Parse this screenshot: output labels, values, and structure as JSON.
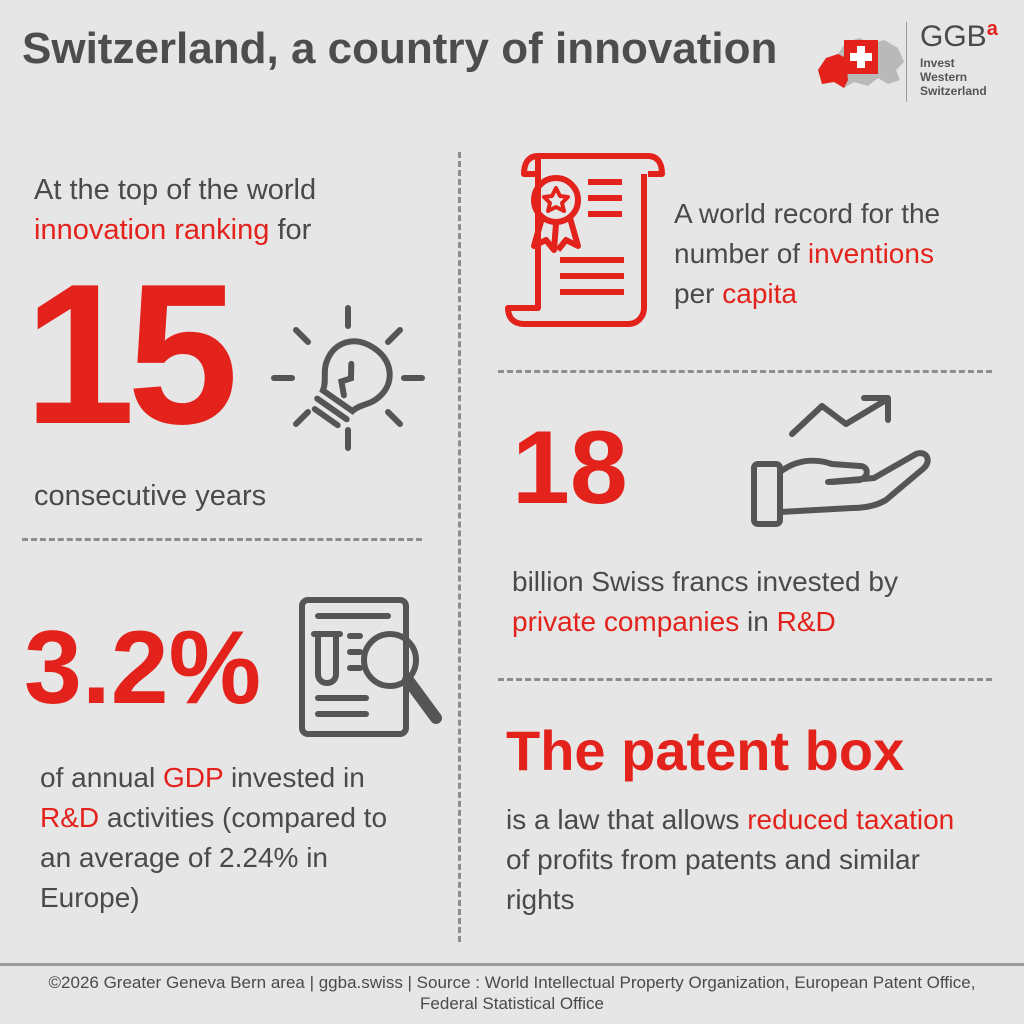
{
  "title": "Switzerland, a country of innovation",
  "logo": {
    "brand": "GGB",
    "brand_sup": "a",
    "lines": [
      "Invest",
      "Western",
      "Switzerland"
    ]
  },
  "block1": {
    "pre": "At the top of the world",
    "highlight": "innovation ranking",
    "post": "for",
    "number": "15",
    "caption": "consecutive years",
    "icon": "light-bulb-icon"
  },
  "block2": {
    "pre": "A world record for the number of",
    "highlight1": "inventions",
    "mid": "per",
    "highlight2": "capita",
    "icon": "certificate-icon"
  },
  "block3": {
    "number": "18",
    "text1": "billion Swiss francs invested by",
    "highlight": "private companies",
    "mid": "in",
    "highlight2": "R&D",
    "icon": "hand-growth-icon"
  },
  "block4": {
    "number": "3.2%",
    "pre": "of annual",
    "highlight1": "GDP",
    "mid": "invested in",
    "highlight2": "R&D",
    "post": "activities (compared to an average of 2.24% in Europe)",
    "icon": "research-document-icon"
  },
  "block5": {
    "heading": "The patent box",
    "pre": "is a law that allows",
    "highlight": "reduced taxation",
    "post": "of profits from patents and similar rights"
  },
  "footer": "©2026 Greater Geneva Bern area | ggba.swiss | Source : World Intellectual Property Organization, European Patent Office, Federal Statistical Office",
  "colors": {
    "accent": "#e3221c",
    "text": "#4a4a4a",
    "background": "#e6e6e6"
  }
}
